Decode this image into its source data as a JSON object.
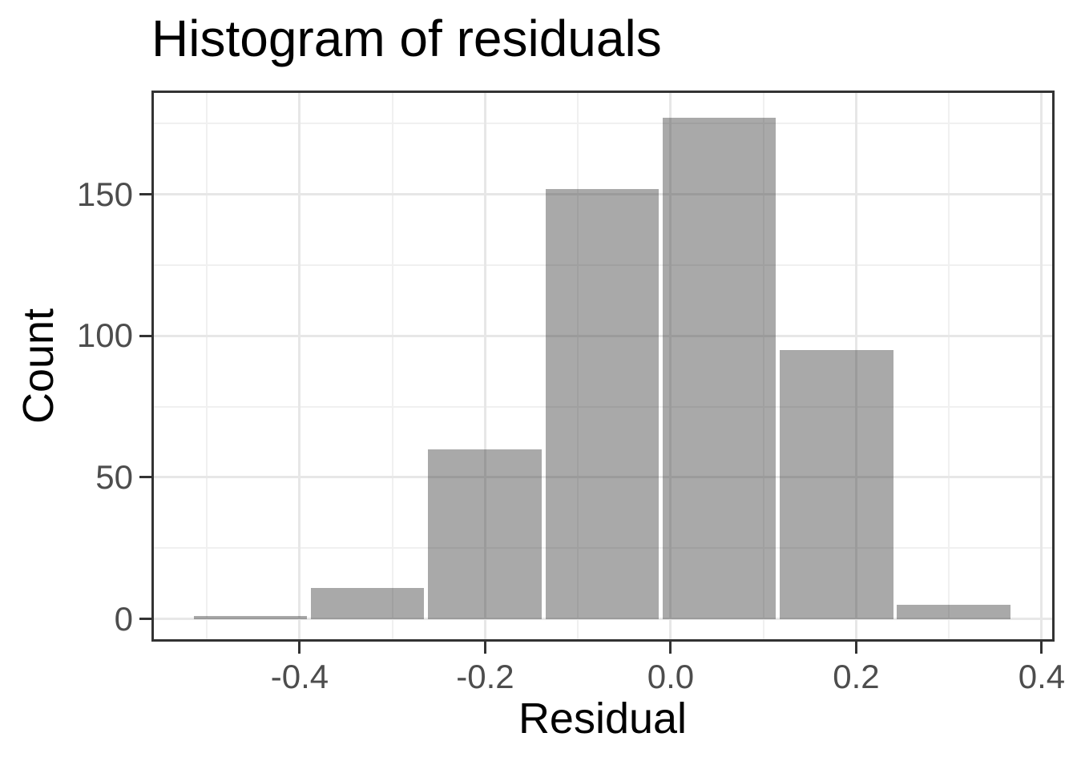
{
  "title": "Histogram of residuals",
  "chart_data": {
    "type": "bar",
    "subtype": "histogram",
    "title": "Histogram of residuals",
    "xlabel": "Residual",
    "ylabel": "Count",
    "bin_centers": [
      -0.453,
      -0.3267,
      -0.2003,
      -0.074,
      0.0524,
      0.1788,
      0.3051
    ],
    "bin_width": 0.1264,
    "bin_edges": [
      -0.516,
      -0.39,
      -0.263,
      -0.137,
      -0.011,
      0.116,
      0.242,
      0.368
    ],
    "counts": [
      1,
      11,
      60,
      152,
      177,
      95,
      5
    ],
    "x_ticks": {
      "values": [
        -0.4,
        -0.2,
        0.0,
        0.2,
        0.4
      ],
      "labels": [
        "-0.4",
        "-0.2",
        "0.0",
        "0.2",
        "0.4"
      ],
      "minor": [
        -0.5,
        -0.3,
        -0.1,
        0.1,
        0.3
      ]
    },
    "y_ticks": {
      "values": [
        0,
        50,
        100,
        150
      ],
      "labels": [
        "0",
        "50",
        "100",
        "150"
      ],
      "minor": [
        25,
        75,
        125,
        175
      ]
    },
    "xlim": [
      -0.5572,
      0.4113
    ],
    "ylim": [
      -7.2,
      185.9
    ],
    "grid": "major-and-minor",
    "legend": "none"
  },
  "style": {
    "background": "#ffffff",
    "bar_fill": "rgba(51,51,51,0.42)",
    "bar_fill_effective": "#a9a9a9",
    "grid_major_color": "#e7e7e7",
    "grid_minor_color": "#f0f0f0",
    "panel_border_color": "#333333",
    "tick_mark_color": "#333333",
    "tick_label_color": "#4d4d4d",
    "text_color": "#000000"
  }
}
